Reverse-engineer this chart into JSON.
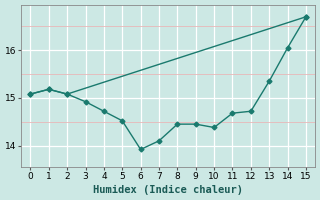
{
  "line1_x": [
    0,
    1,
    2,
    15
  ],
  "line1_y": [
    15.08,
    15.18,
    15.08,
    16.7
  ],
  "line2_x": [
    0,
    1,
    2,
    3,
    4,
    5,
    6,
    7,
    8,
    9,
    10,
    11,
    12,
    13,
    14,
    15
  ],
  "line2_y": [
    15.08,
    15.18,
    15.08,
    14.92,
    14.72,
    14.52,
    13.92,
    14.1,
    14.45,
    14.45,
    14.38,
    14.68,
    14.72,
    15.35,
    16.05,
    16.7
  ],
  "color": "#1a7a6e",
  "bg_color": "#cce8e4",
  "grid_major_color": "#ffffff",
  "grid_minor_color": "#e8b8b8",
  "xlabel": "Humidex (Indice chaleur)",
  "xlabel_fontsize": 7.5,
  "ylim": [
    13.55,
    16.95
  ],
  "xlim": [
    -0.5,
    15.5
  ],
  "yticks": [
    14,
    15,
    16
  ],
  "xticks": [
    0,
    1,
    2,
    3,
    4,
    5,
    6,
    7,
    8,
    9,
    10,
    11,
    12,
    13,
    14,
    15
  ],
  "marker": "D",
  "marker_size": 2.5,
  "line_width": 1.0
}
